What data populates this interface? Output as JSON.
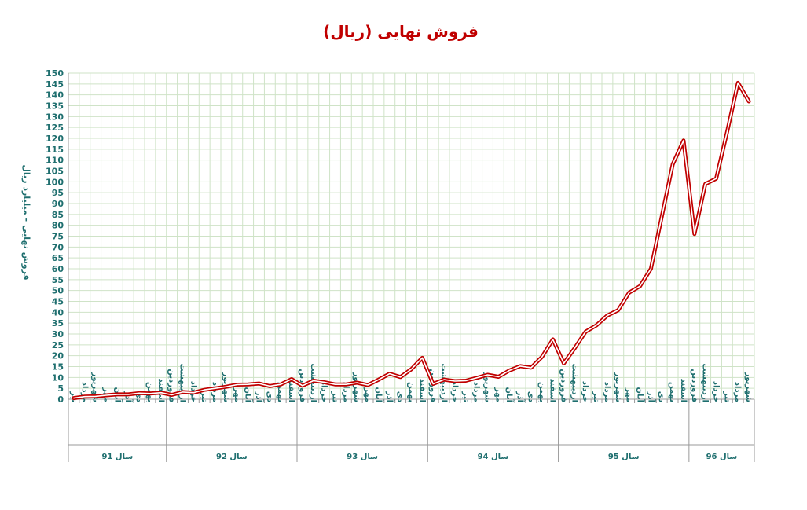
{
  "chart_data": {
    "type": "line",
    "title": "فروش نهایی (ریال)",
    "ylabel": "فروش نهایی - میلیارد ریال",
    "ylim": [
      0,
      150
    ],
    "ytick_step": 5,
    "grid": true,
    "series_color": "#c00000",
    "groups": [
      {
        "label": "سال 91",
        "months": [
          "تیر",
          "مرداد",
          "شهریور",
          "مهر",
          "آبان",
          "آذر",
          "دی",
          "بهمن",
          "اسفند"
        ]
      },
      {
        "label": "سال 92",
        "months": [
          "فروردین",
          "اردیبهشت",
          "خرداد",
          "تیر",
          "مرداد",
          "شهریور",
          "مهر",
          "آبان",
          "آذر",
          "دی",
          "بهمن",
          "اسفند"
        ]
      },
      {
        "label": "سال 93",
        "months": [
          "فروردین",
          "اردیبهشت",
          "خرداد",
          "تیر",
          "مرداد",
          "شهریور",
          "مهر",
          "آبان",
          "آذر",
          "دی",
          "بهمن",
          "اسفند"
        ]
      },
      {
        "label": "سال 94",
        "months": [
          "فروردین",
          "اردیبهشت",
          "خرداد",
          "تیر",
          "مرداد",
          "شهریور",
          "مهر",
          "آبان",
          "آذر",
          "دی",
          "بهمن",
          "اسفند"
        ]
      },
      {
        "label": "سال 95",
        "months": [
          "فروردین",
          "اردیبهشت",
          "خرداد",
          "تیر",
          "مرداد",
          "شهریور",
          "مهر",
          "آبان",
          "آذر",
          "دی",
          "بهمن",
          "اسفند"
        ]
      },
      {
        "label": "سال 96",
        "months": [
          "فروردین",
          "اردیبهشت",
          "خرداد",
          "تیر",
          "مرداد",
          "شهریور"
        ]
      }
    ],
    "values": [
      0.5,
      1.2,
      1.3,
      1.8,
      2.2,
      2.2,
      2.8,
      2.6,
      3.0,
      2.0,
      3.3,
      3.0,
      4.3,
      5.0,
      5.7,
      6.7,
      6.8,
      7.2,
      6.0,
      6.8,
      9.2,
      6.2,
      8.5,
      7.8,
      6.8,
      6.8,
      7.6,
      6.5,
      9.0,
      11.7,
      10.2,
      13.8,
      19.0,
      7.0,
      9.0,
      8.3,
      8.5,
      9.8,
      11.2,
      10.3,
      13.2,
      15.2,
      14.5,
      19.5,
      27.5,
      16.5,
      23.5,
      31.0,
      34.0,
      38.5,
      41.0,
      49.0,
      52.0,
      60.0,
      84.0,
      108.0,
      119.0,
      76.0,
      99.0,
      101.5,
      123.0,
      145.5,
      137.0
    ]
  }
}
